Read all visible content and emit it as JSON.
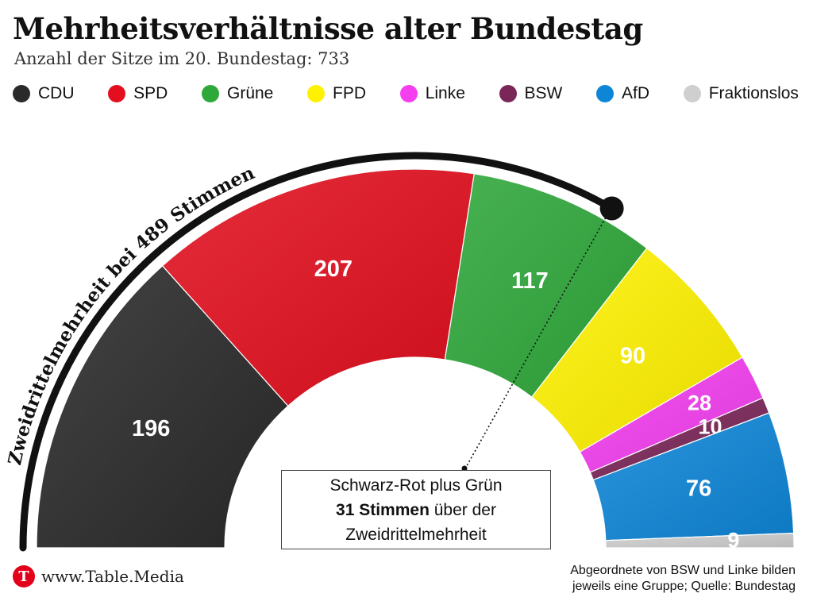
{
  "title": "Mehrheitsverhältnisse alter Bundestag",
  "subtitle": "Anzahl der Sitze im 20. Bundestag: 733",
  "chart_data": {
    "type": "pie",
    "variant": "half-donut parliament chart",
    "total_seats": 733,
    "series": [
      {
        "name": "CDU",
        "value": 196,
        "color": "#2b2a2a"
      },
      {
        "name": "SPD",
        "value": 207,
        "color": "#e30f1f"
      },
      {
        "name": "Grüne",
        "value": 117,
        "color": "#2fa83a"
      },
      {
        "name": "FPD",
        "value": 90,
        "color": "#fff200"
      },
      {
        "name": "Linke",
        "value": 28,
        "color": "#f43ef0"
      },
      {
        "name": "BSW",
        "value": 10,
        "color": "#7b2658"
      },
      {
        "name": "AfD",
        "value": 76,
        "color": "#0e86d8"
      },
      {
        "name": "Fraktionslos",
        "value": 9,
        "color": "#cfcfcf"
      }
    ],
    "threshold": {
      "value": 489,
      "label": "Zweidrittelmehrheit bei 489 Stimmen"
    },
    "legend_position": "top"
  },
  "callout": {
    "line1": "Schwarz-Rot plus Grün",
    "bold": "31 Stimmen",
    "line2_rest": " über der",
    "line3": "Zweidrittelmehrheit"
  },
  "brand": {
    "logo_letter": "T",
    "text": "www.Table.Media"
  },
  "source": {
    "line1": "Abgeordnete von BSW und Linke bilden",
    "line2": "jeweils eine Gruppe; Quelle: Bundestag"
  }
}
